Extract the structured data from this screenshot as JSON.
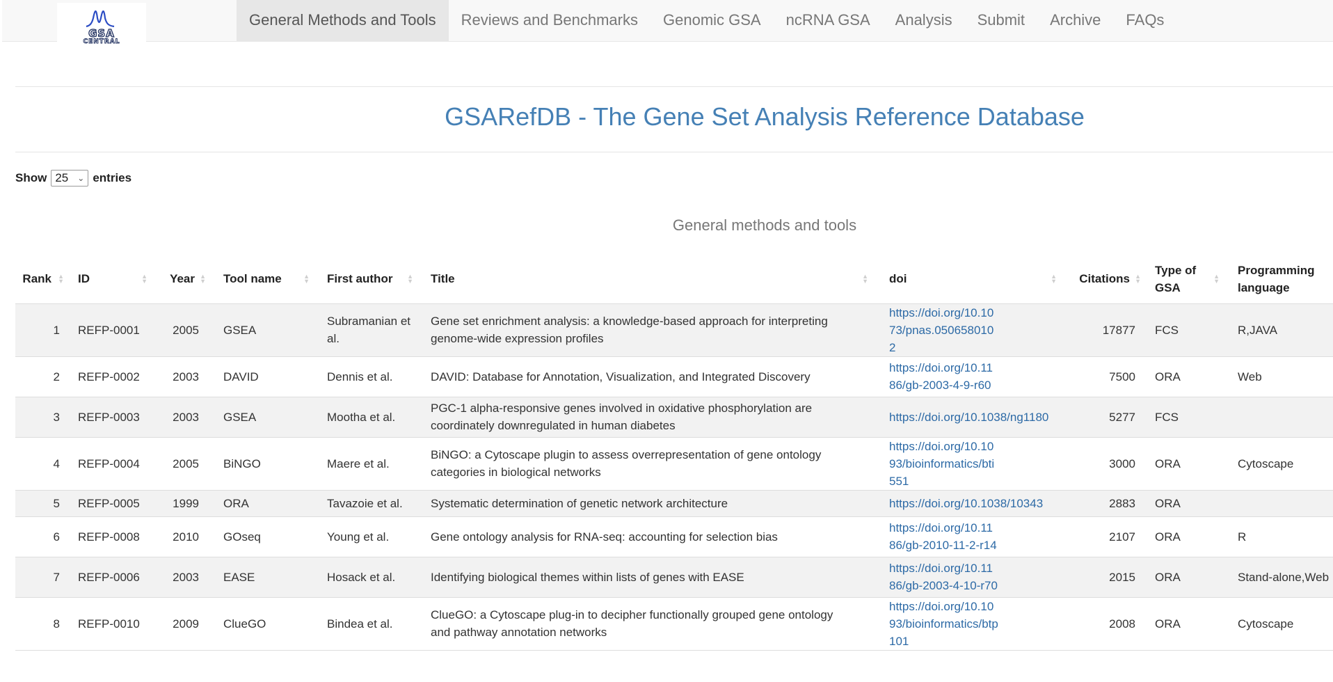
{
  "brand": {
    "logo_text": "GSA",
    "logo_sub": "CENTRAL"
  },
  "nav": [
    {
      "label": "General Methods and Tools",
      "active": true
    },
    {
      "label": "Reviews and Benchmarks"
    },
    {
      "label": "Genomic GSA"
    },
    {
      "label": "ncRNA GSA"
    },
    {
      "label": "Analysis"
    },
    {
      "label": "Submit"
    },
    {
      "label": "Archive"
    },
    {
      "label": "FAQs"
    }
  ],
  "page_title": "GSARefDB - The Gene Set Analysis Reference Database",
  "length_control": {
    "show": "Show",
    "value": "25",
    "entries": "entries"
  },
  "table_caption": "General methods and tools",
  "table": {
    "columns": [
      "Rank",
      "ID",
      "Year",
      "Tool name",
      "First author",
      "Title",
      "doi",
      "Citations",
      "Type of GSA",
      "Programming language"
    ],
    "rows": [
      {
        "rank": "1",
        "id": "REFP-0001",
        "year": "2005",
        "tool": "GSEA",
        "author": "Subramanian et al.",
        "title": "Gene set enrichment analysis: a knowledge-based approach for interpreting genome-wide expression profiles",
        "doi": "https://doi.org/10.1073/pnas.0506580102",
        "citations": "17877",
        "type": "FCS",
        "language": "R,JAVA"
      },
      {
        "rank": "2",
        "id": "REFP-0002",
        "year": "2003",
        "tool": "DAVID",
        "author": "Dennis et al.",
        "title": "DAVID: Database for Annotation, Visualization, and Integrated Discovery",
        "doi": "https://doi.org/10.1186/gb-2003-4-9-r60",
        "citations": "7500",
        "type": "ORA",
        "language": "Web"
      },
      {
        "rank": "3",
        "id": "REFP-0003",
        "year": "2003",
        "tool": "GSEA",
        "author": "Mootha et al.",
        "title": "PGC-1 alpha-responsive genes involved in oxidative phosphorylation are coordinately downregulated in human diabetes",
        "doi": "https://doi.org/10.1038/ng1180",
        "citations": "5277",
        "type": "FCS",
        "language": ""
      },
      {
        "rank": "4",
        "id": "REFP-0004",
        "year": "2005",
        "tool": "BiNGO",
        "author": "Maere et al.",
        "title": "BiNGO: a Cytoscape plugin to assess overrepresentation of gene ontology categories in biological networks",
        "doi": "https://doi.org/10.1093/bioinformatics/bti551",
        "citations": "3000",
        "type": "ORA",
        "language": "Cytoscape"
      },
      {
        "rank": "5",
        "id": "REFP-0005",
        "year": "1999",
        "tool": "ORA",
        "author": "Tavazoie et al.",
        "title": "Systematic determination of genetic network architecture",
        "doi": "https://doi.org/10.1038/10343",
        "citations": "2883",
        "type": "ORA",
        "language": ""
      },
      {
        "rank": "6",
        "id": "REFP-0008",
        "year": "2010",
        "tool": "GOseq",
        "author": "Young et al.",
        "title": "Gene ontology analysis for RNA-seq: accounting for selection bias",
        "doi": "https://doi.org/10.1186/gb-2010-11-2-r14",
        "citations": "2107",
        "type": "ORA",
        "language": "R"
      },
      {
        "rank": "7",
        "id": "REFP-0006",
        "year": "2003",
        "tool": "EASE",
        "author": "Hosack et al.",
        "title": "Identifying biological themes within lists of genes with EASE",
        "doi": "https://doi.org/10.1186/gb-2003-4-10-r70",
        "citations": "2015",
        "type": "ORA",
        "language": "Stand-alone,Web"
      },
      {
        "rank": "8",
        "id": "REFP-0010",
        "year": "2009",
        "tool": "ClueGO",
        "author": "Bindea et al.",
        "title": "ClueGO: a Cytoscape plug-in to decipher functionally grouped gene ontology and pathway annotation networks",
        "doi": "https://doi.org/10.1093/bioinformatics/btp101",
        "citations": "2008",
        "type": "ORA",
        "language": "Cytoscape"
      }
    ]
  }
}
